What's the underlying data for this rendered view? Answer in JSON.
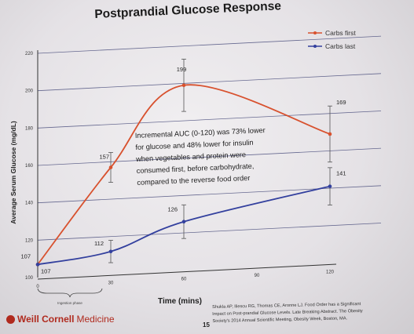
{
  "title": "Postprandial Glucose Response",
  "annotation_lines": [
    "Incremental AUC (0-120) was 73% lower",
    "for glucose and 48% lower for insulin",
    "when vegetables and protein were",
    "consumed first, before carbohydrate,",
    "compared to the reverse food order"
  ],
  "phase_label": "Ingestion phase",
  "citation_lines": [
    "Shukla AP, Iliescu RG, Thomas CE, Aronne LJ. Food Order has a Significant",
    "Impact on Post-prandial Glucose Levels. Late Breaking Abstract. The Obesity",
    "Society's 2014 Annual Scientific Meeting, Obesity Week, Boston, MA."
  ],
  "slide_number": "15",
  "logo": {
    "name": "Weill Cornell",
    "suffix": "Medicine"
  },
  "colors": {
    "carbs_first": "#d8512e",
    "carbs_last": "#33409e",
    "gridline": "#3b3f72"
  },
  "chart_data": {
    "type": "line",
    "x": [
      0,
      30,
      60,
      120
    ],
    "xticks": [
      "0",
      "30",
      "60",
      "90",
      "120"
    ],
    "xtick_values": [
      0,
      30,
      60,
      90,
      120
    ],
    "yticks": [
      "100",
      "120",
      "140",
      "160",
      "180",
      "200",
      "220"
    ],
    "ytick_values": [
      100,
      120,
      140,
      160,
      180,
      200,
      220
    ],
    "xlim": [
      0,
      120
    ],
    "ylim": [
      100,
      220
    ],
    "xlabel": "Time (mins)",
    "ylabel": "Average Serum Glucose (mg/dL)",
    "legend_position": "top-right",
    "grid": true,
    "series": [
      {
        "name": "Carbs first",
        "color": "#d8512e",
        "values": [
          107,
          157,
          199,
          169
        ],
        "labels": [
          "107",
          "157",
          "199",
          "169"
        ],
        "error": [
          0,
          8,
          14,
          15
        ]
      },
      {
        "name": "Carbs last",
        "color": "#33409e",
        "values": [
          107,
          112,
          126,
          141
        ],
        "labels": [
          "",
          "112",
          "126",
          "141"
        ],
        "error": [
          0,
          6,
          9,
          10
        ]
      }
    ]
  }
}
